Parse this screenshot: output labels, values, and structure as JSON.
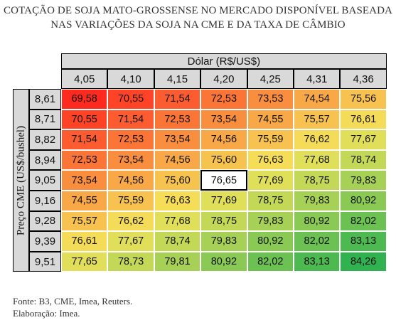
{
  "title_line1": "COTAÇÃO DE SOJA MATO-GROSSENSE NO MERCADO DISPONÍVEL BASEADA",
  "title_line2": "NAS VARIAÇÕES DA SOJA NA CME E DA TAXA DE CÂMBIO",
  "footer_source": "Fonte: B3, CME, Imea, Reuters.",
  "footer_credit": "Elaboração: Imea.",
  "chart_data": {
    "type": "heatmap",
    "x_label": "Dólar (R$/US$)",
    "y_label": "Preço CME (US$/bushel)",
    "columns": [
      "4,05",
      "4,10",
      "4,15",
      "4,20",
      "4,25",
      "4,31",
      "4,36"
    ],
    "rows": [
      "8,61",
      "8,71",
      "8,82",
      "8,94",
      "9,05",
      "9,16",
      "9,28",
      "9,39",
      "9,51"
    ],
    "values": [
      [
        "69,58",
        "70,55",
        "71,54",
        "72,53",
        "73,53",
        "74,54",
        "75,56"
      ],
      [
        "70,55",
        "71,54",
        "72,53",
        "73,54",
        "74,55",
        "75,57",
        "76,61"
      ],
      [
        "71,54",
        "72,53",
        "73,54",
        "74,56",
        "75,59",
        "76,62",
        "77,67"
      ],
      [
        "72,53",
        "73,54",
        "74,56",
        "75,60",
        "76,63",
        "77,68",
        "78,74"
      ],
      [
        "73,54",
        "74,56",
        "75,60",
        "76,65",
        "77,69",
        "78,75",
        "79,83"
      ],
      [
        "74,55",
        "75,59",
        "76,63",
        "77,69",
        "78,75",
        "79,83",
        "80,92"
      ],
      [
        "75,57",
        "76,62",
        "77,68",
        "78,75",
        "79,83",
        "80,92",
        "82,02"
      ],
      [
        "76,61",
        "77,67",
        "78,74",
        "79,83",
        "80,92",
        "82,02",
        "83,13"
      ],
      [
        "77,65",
        "78,73",
        "79,81",
        "80,92",
        "82,02",
        "83,13",
        "84,26"
      ]
    ],
    "highlight": {
      "row": "9,05",
      "column": "4,20",
      "value": "76,65"
    },
    "color_scale": {
      "low": "#ff2a1f",
      "mid": "#f5e45a",
      "high": "#2fb24f"
    }
  }
}
